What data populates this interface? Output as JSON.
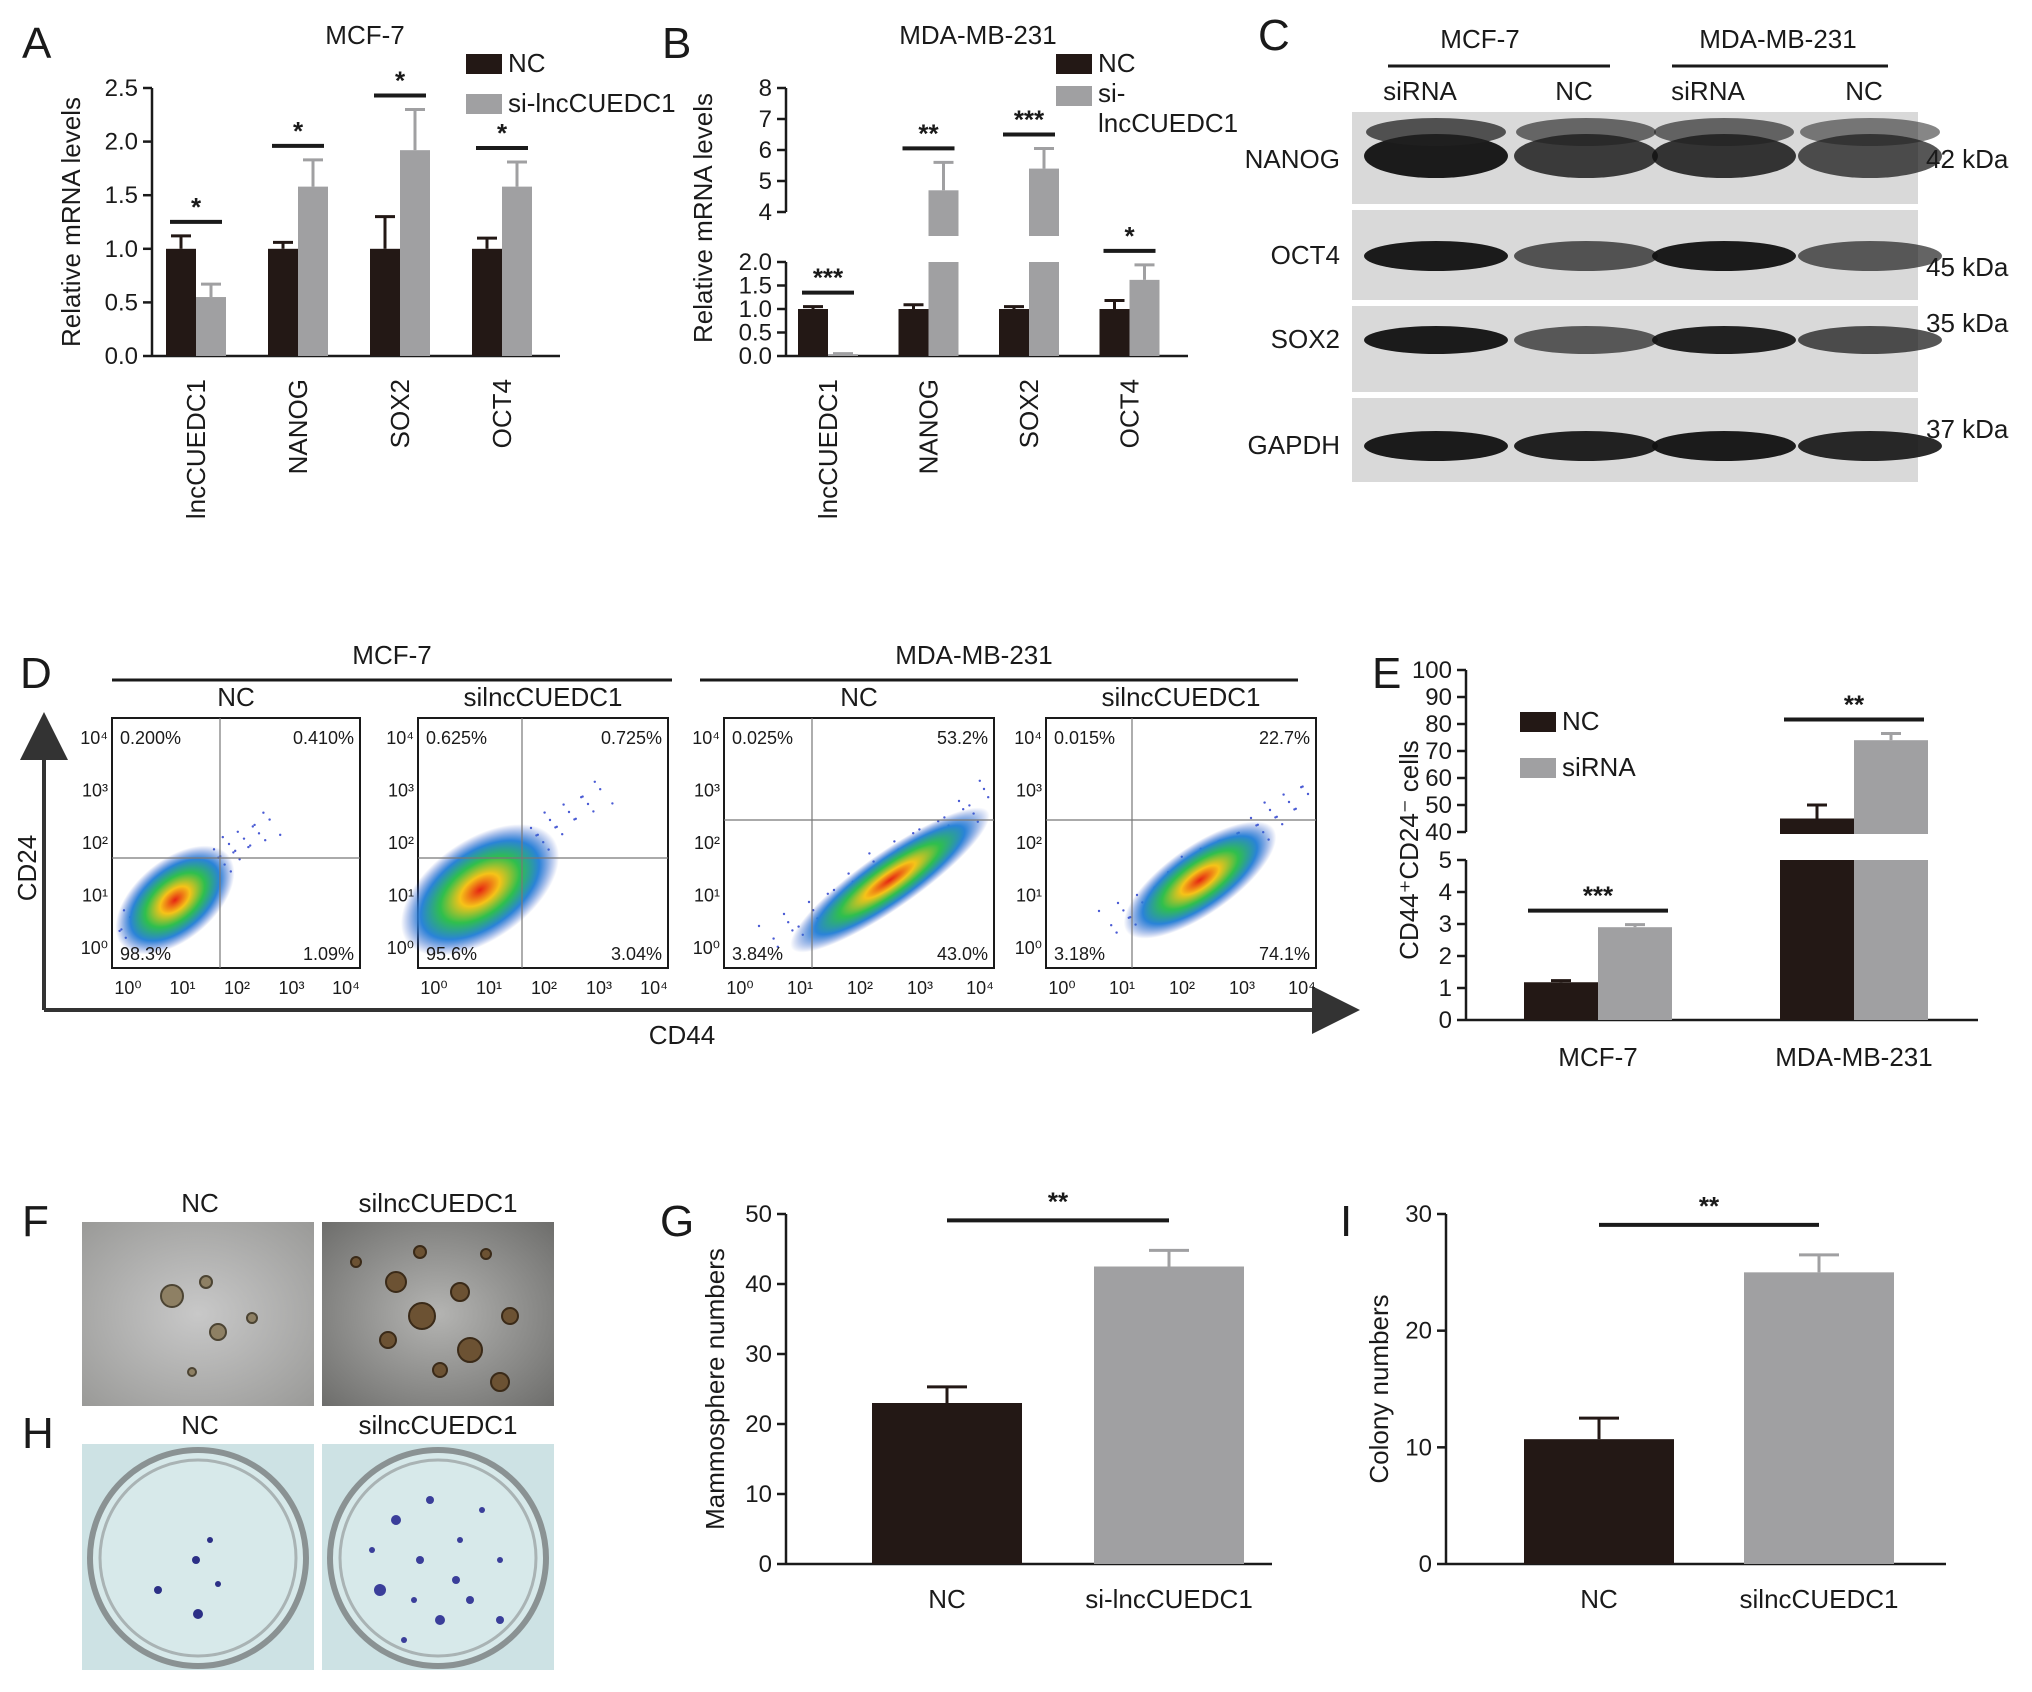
{
  "colors": {
    "nc": "#231815",
    "si": "#a0a0a2",
    "background": "#ffffff"
  },
  "panel_labels": [
    "A",
    "B",
    "C",
    "D",
    "E",
    "F",
    "G",
    "H",
    "I"
  ],
  "chart_data": [
    {
      "panel": "A",
      "type": "bar",
      "title": "MCF-7",
      "categories": [
        "lncCUEDC1",
        "NANOG",
        "SOX2",
        "OCT4"
      ],
      "ylabel": "Relative mRNA levels",
      "ylim": [
        0,
        2.5
      ],
      "yticks": [
        0,
        0.5,
        1.0,
        1.5,
        2.0,
        2.5
      ],
      "ytick_labels": [
        "0.0",
        "0.5",
        "1.0",
        "1.5",
        "2.0",
        "2.5"
      ],
      "series": [
        {
          "name": "NC",
          "values": [
            1.0,
            1.0,
            1.0,
            1.0
          ],
          "errors": [
            0.12,
            0.06,
            0.3,
            0.1
          ]
        },
        {
          "name": "si-lncCUEDC1",
          "values": [
            0.55,
            1.58,
            1.92,
            1.58
          ],
          "errors": [
            0.12,
            0.25,
            0.38,
            0.23
          ]
        }
      ],
      "significance": [
        "*",
        "*",
        "*",
        "*"
      ]
    },
    {
      "panel": "B",
      "type": "bar",
      "title": "MDA-MB-231",
      "categories": [
        "lncCUEDC1",
        "NANOG",
        "SOX2",
        "OCT4"
      ],
      "ylabel": "Relative mRNA levels",
      "ylim": [
        0,
        8
      ],
      "axis_break": [
        2.0,
        4
      ],
      "yticks": [
        0,
        0.5,
        1.0,
        1.5,
        2.0,
        4,
        5,
        6,
        7,
        8
      ],
      "ytick_labels": [
        "0.0",
        "0.5",
        "1.0",
        "1.5",
        "2.0",
        "4",
        "5",
        "6",
        "7",
        "8"
      ],
      "series": [
        {
          "name": "NC",
          "values": [
            1.0,
            1.0,
            1.0,
            1.0
          ],
          "errors": [
            0.05,
            0.09,
            0.05,
            0.18
          ]
        },
        {
          "name": "si-lncCUEDC1",
          "values": [
            0.04,
            4.7,
            5.4,
            1.62
          ],
          "errors": [
            0.01,
            0.9,
            0.65,
            0.32
          ]
        }
      ],
      "significance": [
        "***",
        "**",
        "***",
        "*"
      ]
    },
    {
      "panel": "E",
      "type": "bar",
      "categories": [
        "MCF-7",
        "MDA-MB-231"
      ],
      "ylabel": "CD44⁺CD24⁻ cells",
      "ylim": [
        0,
        100
      ],
      "axis_break": [
        5,
        40
      ],
      "yticks": [
        0,
        1,
        2,
        3,
        4,
        5,
        40,
        50,
        60,
        70,
        80,
        90,
        100
      ],
      "ytick_labels": [
        "0",
        "1",
        "2",
        "3",
        "4",
        "5",
        "40",
        "50",
        "60",
        "70",
        "80",
        "90",
        "100"
      ],
      "series": [
        {
          "name": "NC",
          "values": [
            1.18,
            45.0
          ],
          "errors": [
            0.05,
            5.0
          ]
        },
        {
          "name": "siRNA",
          "values": [
            2.9,
            74.0
          ],
          "errors": [
            0.08,
            2.5
          ]
        }
      ],
      "significance": [
        "***",
        "**"
      ]
    },
    {
      "panel": "G",
      "type": "bar",
      "categories": [
        "NC",
        "si-lncCUEDC1"
      ],
      "ylabel": "Mammosphere numbers",
      "ylim": [
        0,
        50
      ],
      "yticks": [
        0,
        10,
        20,
        30,
        40,
        50
      ],
      "values": [
        23,
        42.5
      ],
      "errors": [
        2.3,
        2.3
      ],
      "significance": "**"
    },
    {
      "panel": "I",
      "type": "bar",
      "categories": [
        "NC",
        "silncCUEDC1"
      ],
      "ylabel": "Colony numbers",
      "ylim": [
        0,
        30
      ],
      "yticks": [
        0,
        10,
        20,
        30
      ],
      "values": [
        10.7,
        25.0
      ],
      "errors": [
        1.8,
        1.5
      ],
      "significance": "**"
    }
  ],
  "western_blot": {
    "groups": [
      "MCF-7",
      "MDA-MB-231"
    ],
    "lanes": [
      "siRNA",
      "NC",
      "siRNA",
      "NC"
    ],
    "rows": [
      {
        "protein": "NANOG",
        "size": "42 kDa"
      },
      {
        "protein": "OCT4",
        "size": "45 kDa"
      },
      {
        "protein": "SOX2",
        "size": "35 kDa"
      },
      {
        "protein": "GAPDH",
        "size": "37 kDa"
      }
    ]
  },
  "flow": {
    "groups": [
      "MCF-7",
      "MDA-MB-231"
    ],
    "xlabel": "CD44",
    "ylabel": "CD24",
    "axis_ticks": [
      "10⁰",
      "10¹",
      "10²",
      "10³",
      "10⁴"
    ],
    "plots": [
      {
        "title": "NC",
        "ul": "0.200%",
        "ur": "0.410%",
        "ll": "98.3%",
        "lr": "1.09%"
      },
      {
        "title": "silncCUEDC1",
        "ul": "0.625%",
        "ur": "0.725%",
        "ll": "95.6%",
        "lr": "3.04%"
      },
      {
        "title": "NC",
        "ul": "0.025%",
        "ur": "53.2%",
        "ll": "3.84%",
        "lr": "43.0%"
      },
      {
        "title": "silncCUEDC1",
        "ul": "0.015%",
        "ur": "22.7%",
        "ll": "3.18%",
        "lr": "74.1%"
      }
    ]
  },
  "mammosphere_images": {
    "labels": [
      "NC",
      "silncCUEDC1"
    ]
  },
  "colony_images": {
    "labels": [
      "NC",
      "silncCUEDC1"
    ]
  }
}
